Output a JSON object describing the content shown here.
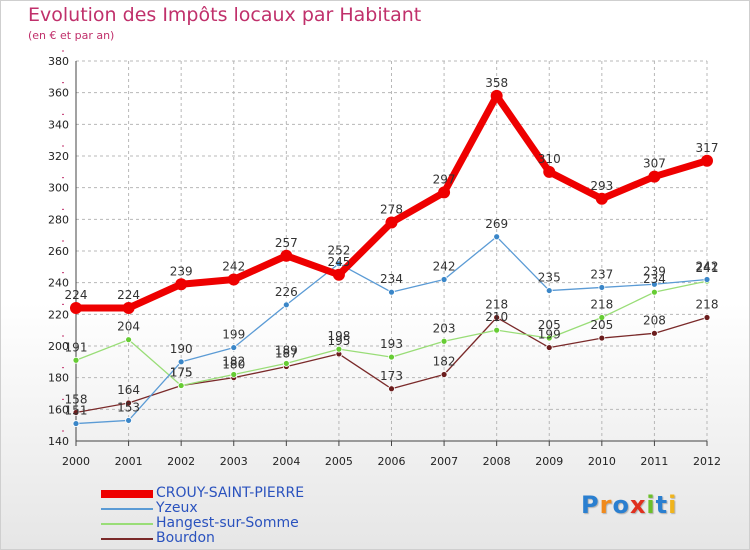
{
  "page": {
    "title": "Evolution des Impôts locaux par Habitant",
    "subtitle": "(en € et par an)",
    "logo_text": "Proxiti"
  },
  "colors": {
    "title": "#c0306b",
    "legend_text": "#2a52be",
    "grid": "#b8b8b8",
    "tick_accent": "#c0306b"
  },
  "chart_data": {
    "type": "line",
    "title": "Evolution des Impôts locaux par Habitant",
    "subtitle": "(en € et par an)",
    "xlabel": "",
    "ylabel": "",
    "ylim": [
      140,
      380
    ],
    "yticks": [
      140,
      160,
      180,
      200,
      220,
      240,
      260,
      280,
      300,
      320,
      340,
      360,
      380
    ],
    "x": [
      "2000",
      "2001",
      "2002",
      "2003",
      "2004",
      "2005",
      "2006",
      "2007",
      "2008",
      "2009",
      "2010",
      "2011",
      "2012"
    ],
    "grid": true,
    "legend_position": "bottom-left",
    "series": [
      {
        "name": "CROUY-SAINT-PIERRE",
        "color": "#ee0000",
        "marker_color": "#ee0000",
        "values": [
          224,
          224,
          239,
          242,
          257,
          245,
          278,
          297,
          358,
          310,
          293,
          307,
          317
        ]
      },
      {
        "name": "Yzeux",
        "color": "#5b9bd5",
        "marker_color": "#3a86c8",
        "values": [
          151,
          153,
          190,
          199,
          226,
          252,
          234,
          242,
          269,
          235,
          237,
          239,
          242
        ]
      },
      {
        "name": "Hangest-sur-Somme",
        "color": "#99dd77",
        "marker_color": "#66cc33",
        "values": [
          191,
          204,
          175,
          182,
          189,
          198,
          193,
          203,
          210,
          205,
          218,
          234,
          241
        ]
      },
      {
        "name": "Bourdon",
        "color": "#7a2a2a",
        "marker_color": "#6b1d1d",
        "values": [
          158,
          164,
          175,
          180,
          187,
          195,
          173,
          182,
          218,
          199,
          205,
          208,
          218
        ]
      }
    ]
  }
}
